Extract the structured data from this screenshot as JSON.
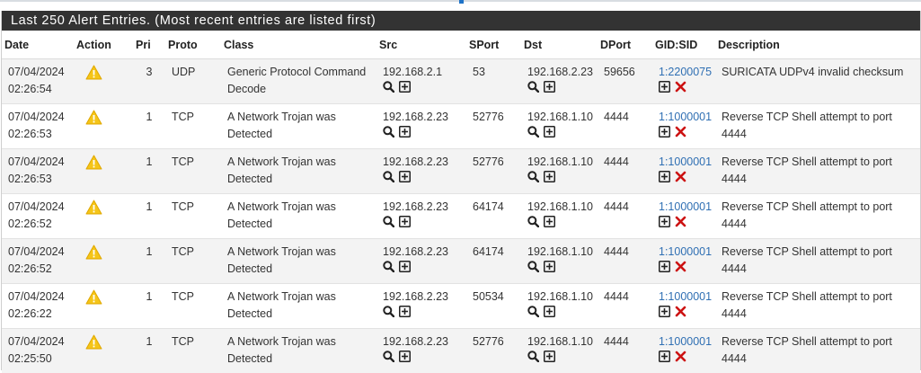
{
  "panel": {
    "title": "Last 250 Alert Entries. (Most recent entries are listed first)"
  },
  "columns": {
    "date": "Date",
    "action": "Action",
    "pri": "Pri",
    "proto": "Proto",
    "class": "Class",
    "src": "Src",
    "sport": "SPort",
    "dst": "Dst",
    "dport": "DPort",
    "gidsid": "GID:SID",
    "description": "Description"
  },
  "colors": {
    "header_bg": "#333333",
    "link": "#2f6fb3",
    "warning": "#f5c518",
    "delete": "#cc1111"
  },
  "icons": {
    "action": "warning-icon",
    "lookup": "search-icon",
    "add": "plus-box-icon",
    "remove": "close-icon"
  },
  "rows": [
    {
      "date": "07/04/2024",
      "time": "02:26:54",
      "pri": "3",
      "proto": "UDP",
      "class1": "Generic Protocol Command",
      "class2": "Decode",
      "src": "192.168.2.1",
      "sport": "53",
      "dst": "192.168.2.23",
      "dport": "59656",
      "gidsid": "1:2200075",
      "desc1": "SURICATA UDPv4 invalid checksum",
      "desc2": ""
    },
    {
      "date": "07/04/2024",
      "time": "02:26:53",
      "pri": "1",
      "proto": "TCP",
      "class1": "A Network Trojan was",
      "class2": "Detected",
      "src": "192.168.2.23",
      "sport": "52776",
      "dst": "192.168.1.10",
      "dport": "4444",
      "gidsid": "1:1000001",
      "desc1": "Reverse TCP Shell attempt to port",
      "desc2": "4444"
    },
    {
      "date": "07/04/2024",
      "time": "02:26:53",
      "pri": "1",
      "proto": "TCP",
      "class1": "A Network Trojan was",
      "class2": "Detected",
      "src": "192.168.2.23",
      "sport": "52776",
      "dst": "192.168.1.10",
      "dport": "4444",
      "gidsid": "1:1000001",
      "desc1": "Reverse TCP Shell attempt to port",
      "desc2": "4444"
    },
    {
      "date": "07/04/2024",
      "time": "02:26:52",
      "pri": "1",
      "proto": "TCP",
      "class1": "A Network Trojan was",
      "class2": "Detected",
      "src": "192.168.2.23",
      "sport": "64174",
      "dst": "192.168.1.10",
      "dport": "4444",
      "gidsid": "1:1000001",
      "desc1": "Reverse TCP Shell attempt to port",
      "desc2": "4444"
    },
    {
      "date": "07/04/2024",
      "time": "02:26:52",
      "pri": "1",
      "proto": "TCP",
      "class1": "A Network Trojan was",
      "class2": "Detected",
      "src": "192.168.2.23",
      "sport": "64174",
      "dst": "192.168.1.10",
      "dport": "4444",
      "gidsid": "1:1000001",
      "desc1": "Reverse TCP Shell attempt to port",
      "desc2": "4444"
    },
    {
      "date": "07/04/2024",
      "time": "02:26:22",
      "pri": "1",
      "proto": "TCP",
      "class1": "A Network Trojan was",
      "class2": "Detected",
      "src": "192.168.2.23",
      "sport": "50534",
      "dst": "192.168.1.10",
      "dport": "4444",
      "gidsid": "1:1000001",
      "desc1": "Reverse TCP Shell attempt to port",
      "desc2": "4444"
    },
    {
      "date": "07/04/2024",
      "time": "02:25:50",
      "pri": "1",
      "proto": "TCP",
      "class1": "A Network Trojan was",
      "class2": "Detected",
      "src": "192.168.2.23",
      "sport": "52776",
      "dst": "192.168.1.10",
      "dport": "4444",
      "gidsid": "1:1000001",
      "desc1": "Reverse TCP Shell attempt to port",
      "desc2": "4444"
    }
  ]
}
